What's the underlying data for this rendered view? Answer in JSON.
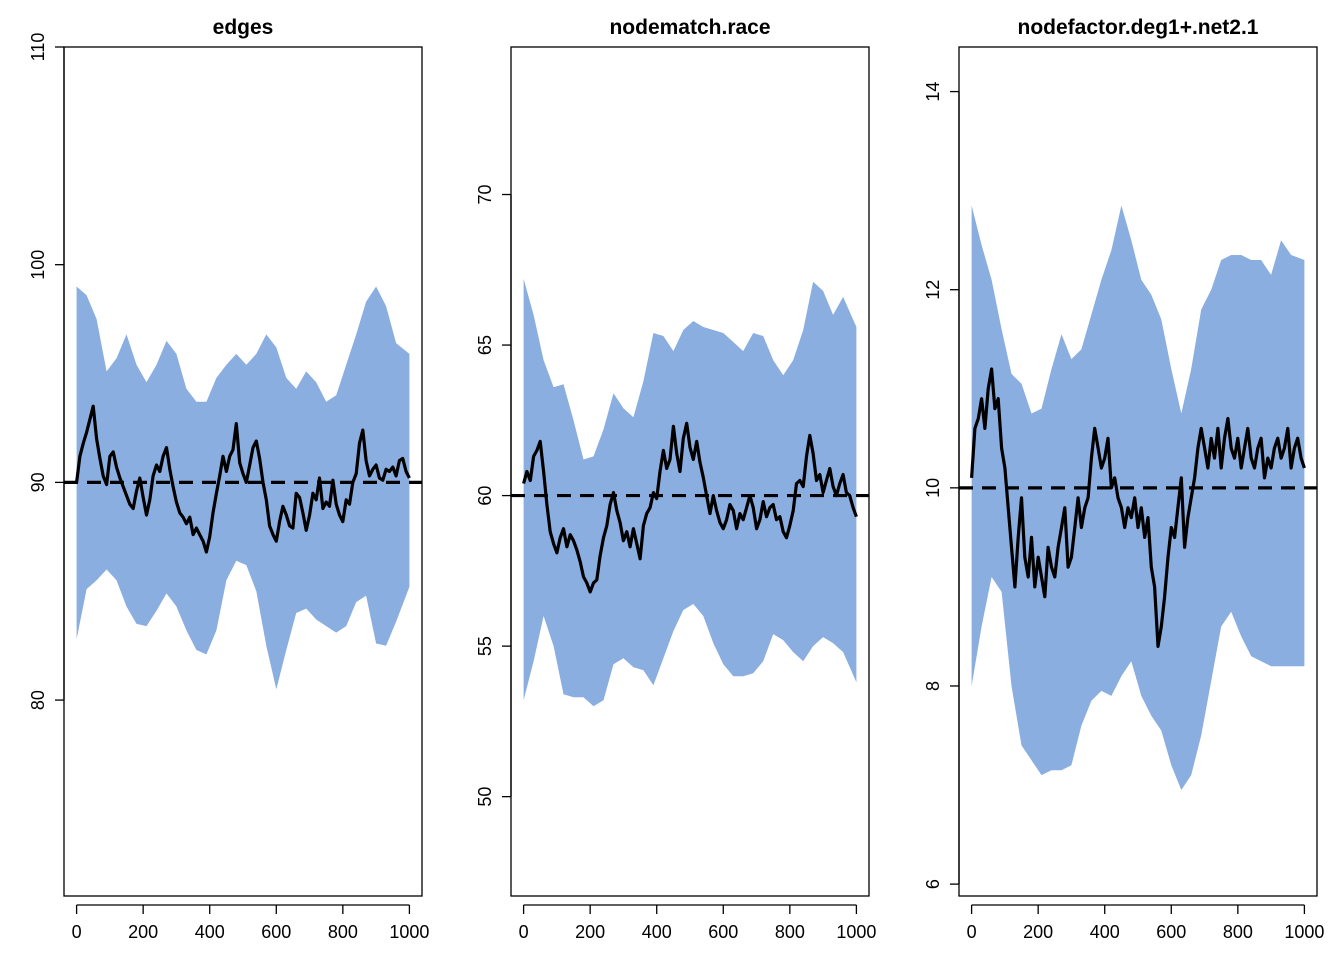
{
  "colors": {
    "band": "#8aaee0",
    "line": "#000000",
    "target": "#000000"
  },
  "chart_data": [
    {
      "type": "area",
      "title": "edges",
      "xlabel": "",
      "ylabel": "",
      "xlim": [
        0,
        1000
      ],
      "ylim": [
        71,
        110
      ],
      "xticks": [
        0,
        200,
        400,
        600,
        800,
        1000
      ],
      "yticks": [
        80,
        90,
        100,
        110
      ],
      "target": 90,
      "band_x": [
        0,
        30,
        60,
        90,
        120,
        150,
        180,
        210,
        240,
        270,
        300,
        330,
        360,
        390,
        420,
        450,
        480,
        510,
        540,
        570,
        600,
        630,
        660,
        690,
        720,
        750,
        780,
        810,
        840,
        870,
        900,
        930,
        960,
        1000
      ],
      "band_upper": [
        99.0,
        98.6,
        97.5,
        95.1,
        95.7,
        96.8,
        95.4,
        94.6,
        95.4,
        96.5,
        95.9,
        94.3,
        93.7,
        93.7,
        94.8,
        95.4,
        95.9,
        95.4,
        95.9,
        96.8,
        96.2,
        94.8,
        94.3,
        95.1,
        94.6,
        93.7,
        94.0,
        95.4,
        96.8,
        98.3,
        99.0,
        98.1,
        96.4,
        95.9
      ],
      "band_lower": [
        82.8,
        85.1,
        85.5,
        86.0,
        85.5,
        84.3,
        83.5,
        83.4,
        84.1,
        84.9,
        84.3,
        83.2,
        82.3,
        82.1,
        83.2,
        85.5,
        86.4,
        86.2,
        85.0,
        82.5,
        80.5,
        82.3,
        84.0,
        84.2,
        83.7,
        83.4,
        83.1,
        83.4,
        84.5,
        84.8,
        82.6,
        82.5,
        83.6,
        85.2
      ],
      "series_x": [
        0,
        10,
        20,
        30,
        40,
        50,
        60,
        70,
        80,
        90,
        100,
        110,
        120,
        130,
        140,
        150,
        160,
        170,
        180,
        190,
        200,
        210,
        220,
        230,
        240,
        250,
        260,
        270,
        280,
        290,
        300,
        310,
        320,
        330,
        340,
        350,
        360,
        370,
        380,
        390,
        400,
        410,
        420,
        430,
        440,
        450,
        460,
        470,
        480,
        490,
        500,
        510,
        520,
        530,
        540,
        550,
        560,
        570,
        580,
        590,
        600,
        610,
        620,
        630,
        640,
        650,
        660,
        670,
        680,
        690,
        700,
        710,
        720,
        730,
        740,
        750,
        760,
        770,
        780,
        790,
        800,
        810,
        820,
        830,
        840,
        850,
        860,
        870,
        880,
        890,
        900,
        910,
        920,
        930,
        940,
        950,
        960,
        970,
        980,
        990,
        1000
      ],
      "series_y": [
        90.0,
        91.2,
        91.8,
        92.3,
        92.9,
        93.5,
        92.0,
        91.1,
        90.3,
        89.9,
        91.2,
        91.4,
        90.7,
        90.2,
        89.8,
        89.4,
        89.0,
        88.8,
        89.6,
        90.2,
        89.3,
        88.5,
        89.2,
        90.3,
        90.8,
        90.5,
        91.2,
        91.6,
        90.6,
        89.8,
        89.1,
        88.6,
        88.4,
        88.1,
        88.4,
        87.6,
        87.9,
        87.6,
        87.3,
        86.8,
        87.5,
        88.6,
        89.5,
        90.3,
        91.2,
        90.5,
        91.2,
        91.5,
        92.7,
        90.9,
        90.4,
        90.0,
        90.8,
        91.6,
        91.9,
        91.1,
        90.0,
        89.2,
        88.0,
        87.6,
        87.3,
        88.2,
        88.9,
        88.5,
        88.0,
        87.9,
        89.5,
        89.3,
        88.6,
        87.8,
        88.5,
        89.5,
        89.2,
        90.2,
        88.8,
        89.1,
        88.9,
        90.1,
        89.0,
        88.5,
        88.2,
        89.2,
        89.0,
        90.0,
        90.4,
        91.8,
        92.4,
        91.0,
        90.3,
        90.6,
        90.8,
        90.2,
        90.1,
        90.6,
        90.5,
        90.7,
        90.3,
        91.0,
        91.1,
        90.5,
        90.2
      ]
    },
    {
      "type": "area",
      "title": "nodematch.race",
      "xlabel": "",
      "ylabel": "",
      "xlim": [
        0,
        1000
      ],
      "ylim": [
        46.7,
        74.9
      ],
      "xticks": [
        0,
        200,
        400,
        600,
        800,
        1000
      ],
      "yticks": [
        50,
        55,
        60,
        65,
        70
      ],
      "target": 60,
      "band_x": [
        0,
        30,
        60,
        90,
        120,
        150,
        180,
        210,
        240,
        270,
        300,
        330,
        360,
        390,
        420,
        450,
        480,
        510,
        540,
        570,
        600,
        630,
        660,
        690,
        720,
        750,
        780,
        810,
        840,
        870,
        900,
        930,
        960,
        1000
      ],
      "band_upper": [
        67.2,
        66.0,
        64.5,
        63.6,
        63.7,
        62.5,
        61.2,
        61.3,
        62.2,
        63.4,
        62.9,
        62.6,
        63.8,
        65.4,
        65.3,
        64.8,
        65.5,
        65.8,
        65.6,
        65.5,
        65.4,
        65.1,
        64.8,
        65.4,
        65.3,
        64.5,
        64.0,
        64.5,
        65.5,
        67.1,
        66.8,
        66.0,
        66.6,
        65.6
      ],
      "band_lower": [
        53.2,
        54.5,
        56.0,
        55.0,
        53.4,
        53.3,
        53.3,
        53.0,
        53.2,
        54.4,
        54.6,
        54.3,
        54.2,
        53.7,
        54.6,
        55.5,
        56.2,
        56.4,
        56.0,
        55.1,
        54.4,
        54.0,
        54.0,
        54.1,
        54.5,
        55.4,
        55.2,
        54.8,
        54.5,
        55.0,
        55.3,
        55.1,
        54.8,
        53.8
      ],
      "series_x": [
        0,
        10,
        20,
        30,
        40,
        50,
        60,
        70,
        80,
        90,
        100,
        110,
        120,
        130,
        140,
        150,
        160,
        170,
        180,
        190,
        200,
        210,
        220,
        230,
        240,
        250,
        260,
        270,
        280,
        290,
        300,
        310,
        320,
        330,
        340,
        350,
        360,
        370,
        380,
        390,
        400,
        410,
        420,
        430,
        440,
        450,
        460,
        470,
        480,
        490,
        500,
        510,
        520,
        530,
        540,
        550,
        560,
        570,
        580,
        590,
        600,
        610,
        620,
        630,
        640,
        650,
        660,
        670,
        680,
        690,
        700,
        710,
        720,
        730,
        740,
        750,
        760,
        770,
        780,
        790,
        800,
        810,
        820,
        830,
        840,
        850,
        860,
        870,
        880,
        890,
        900,
        910,
        920,
        930,
        940,
        950,
        960,
        970,
        980,
        990,
        1000
      ],
      "series_y": [
        60.4,
        60.8,
        60.5,
        61.3,
        61.5,
        61.8,
        60.8,
        59.7,
        58.8,
        58.4,
        58.1,
        58.6,
        58.9,
        58.3,
        58.7,
        58.5,
        58.2,
        57.8,
        57.3,
        57.1,
        56.8,
        57.1,
        57.2,
        58.0,
        58.6,
        59.0,
        59.7,
        60.1,
        59.5,
        59.1,
        58.5,
        58.8,
        58.3,
        58.9,
        58.4,
        57.9,
        59.0,
        59.4,
        59.6,
        60.1,
        59.9,
        60.8,
        61.5,
        60.9,
        61.2,
        62.3,
        61.4,
        60.8,
        61.9,
        62.4,
        61.6,
        61.2,
        61.8,
        61.1,
        60.6,
        60.0,
        59.4,
        60.0,
        59.5,
        59.1,
        58.9,
        59.2,
        59.7,
        59.5,
        58.9,
        59.4,
        59.2,
        59.6,
        60.0,
        59.6,
        58.9,
        59.2,
        59.8,
        59.3,
        59.6,
        59.7,
        59.2,
        59.3,
        58.8,
        58.6,
        59.0,
        59.5,
        60.4,
        60.5,
        60.3,
        61.3,
        62.0,
        61.4,
        60.5,
        60.7,
        60.1,
        60.5,
        60.9,
        60.3,
        60.0,
        60.4,
        60.7,
        60.1,
        60.0,
        59.6,
        59.3
      ]
    },
    {
      "type": "area",
      "title": "nodefactor.deg1+.net2.1",
      "xlabel": "",
      "ylabel": "",
      "xlim": [
        0,
        1000
      ],
      "ylim": [
        5.88,
        14.45
      ],
      "xticks": [
        0,
        200,
        400,
        600,
        800,
        1000
      ],
      "yticks": [
        6,
        8,
        10,
        12,
        14
      ],
      "target": 10,
      "band_x": [
        0,
        30,
        60,
        90,
        120,
        150,
        180,
        210,
        240,
        270,
        300,
        330,
        360,
        390,
        420,
        450,
        480,
        510,
        540,
        570,
        600,
        630,
        660,
        690,
        720,
        750,
        780,
        810,
        840,
        870,
        900,
        930,
        960,
        1000
      ],
      "band_upper": [
        12.85,
        12.45,
        12.1,
        11.6,
        11.15,
        11.05,
        10.75,
        10.8,
        11.2,
        11.55,
        11.3,
        11.4,
        11.75,
        12.1,
        12.4,
        12.85,
        12.5,
        12.1,
        11.95,
        11.7,
        11.2,
        10.75,
        11.2,
        11.8,
        12.0,
        12.3,
        12.35,
        12.35,
        12.3,
        12.3,
        12.15,
        12.5,
        12.35,
        12.3
      ],
      "band_lower": [
        8.0,
        8.6,
        9.1,
        8.95,
        8.0,
        7.4,
        7.25,
        7.1,
        7.15,
        7.15,
        7.2,
        7.6,
        7.85,
        7.95,
        7.9,
        8.1,
        8.25,
        7.9,
        7.7,
        7.55,
        7.2,
        6.95,
        7.1,
        7.5,
        8.05,
        8.6,
        8.75,
        8.5,
        8.3,
        8.25,
        8.2,
        8.2,
        8.2,
        8.2
      ],
      "series_x": [
        0,
        10,
        20,
        30,
        40,
        50,
        60,
        70,
        80,
        90,
        100,
        110,
        120,
        130,
        140,
        150,
        160,
        170,
        180,
        190,
        200,
        210,
        220,
        230,
        240,
        250,
        260,
        270,
        280,
        290,
        300,
        310,
        320,
        330,
        340,
        350,
        360,
        370,
        380,
        390,
        400,
        410,
        420,
        430,
        440,
        450,
        460,
        470,
        480,
        490,
        500,
        510,
        520,
        530,
        540,
        550,
        560,
        570,
        580,
        590,
        600,
        610,
        620,
        630,
        640,
        650,
        660,
        670,
        680,
        690,
        700,
        710,
        720,
        730,
        740,
        750,
        760,
        770,
        780,
        790,
        800,
        810,
        820,
        830,
        840,
        850,
        860,
        870,
        880,
        890,
        900,
        910,
        920,
        930,
        940,
        950,
        960,
        970,
        980,
        990,
        1000
      ],
      "series_y": [
        10.1,
        10.6,
        10.7,
        10.9,
        10.6,
        11.0,
        11.2,
        10.8,
        10.9,
        10.4,
        10.2,
        9.8,
        9.4,
        9.0,
        9.5,
        9.9,
        9.3,
        9.1,
        9.5,
        9.0,
        9.3,
        9.1,
        8.9,
        9.4,
        9.2,
        9.1,
        9.4,
        9.6,
        9.8,
        9.2,
        9.3,
        9.6,
        9.9,
        9.6,
        9.8,
        9.9,
        10.3,
        10.6,
        10.4,
        10.2,
        10.3,
        10.5,
        10.0,
        10.1,
        9.9,
        9.8,
        9.6,
        9.8,
        9.7,
        9.9,
        9.6,
        9.8,
        9.5,
        9.7,
        9.2,
        9.0,
        8.4,
        8.6,
        8.9,
        9.3,
        9.6,
        9.5,
        9.8,
        10.1,
        9.4,
        9.7,
        9.9,
        10.1,
        10.4,
        10.6,
        10.4,
        10.2,
        10.5,
        10.3,
        10.6,
        10.2,
        10.5,
        10.7,
        10.4,
        10.3,
        10.5,
        10.2,
        10.4,
        10.6,
        10.3,
        10.2,
        10.4,
        10.5,
        10.1,
        10.3,
        10.2,
        10.4,
        10.5,
        10.3,
        10.4,
        10.6,
        10.2,
        10.4,
        10.5,
        10.3,
        10.2
      ]
    }
  ]
}
